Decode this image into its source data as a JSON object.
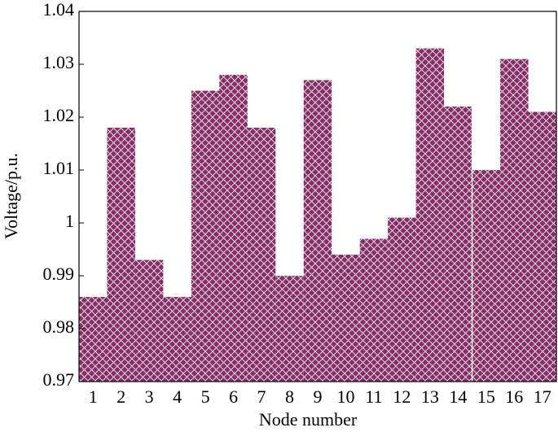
{
  "chart_data": {
    "type": "bar",
    "xlabel": "Node number",
    "ylabel": "Voltage/p.u.",
    "categories": [
      "1",
      "2",
      "3",
      "4",
      "5",
      "6",
      "7",
      "8",
      "9",
      "10",
      "11",
      "12",
      "13",
      "14",
      "15",
      "16",
      "17"
    ],
    "values": [
      0.986,
      1.018,
      0.993,
      0.986,
      1.025,
      1.028,
      1.018,
      0.99,
      1.027,
      0.994,
      0.997,
      1.001,
      1.033,
      1.022,
      1.01,
      1.031,
      1.021
    ],
    "color": "#8b2b5e",
    "ylim": [
      0.97,
      1.04
    ],
    "yticks": [
      0.97,
      0.98,
      0.99,
      1,
      1.01,
      1.02,
      1.03,
      1.04
    ]
  }
}
